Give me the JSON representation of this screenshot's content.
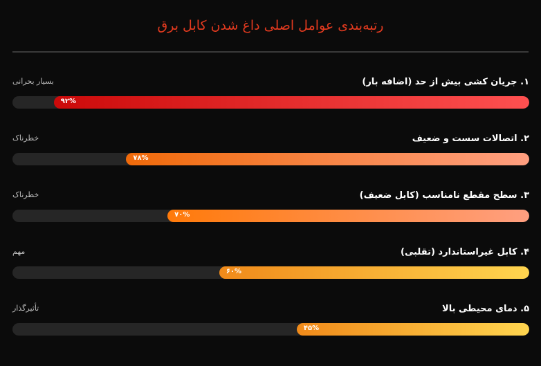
{
  "title": "رتبه‌بندی عوامل اصلی داغ شدن کابل برق",
  "factors": [
    {
      "label": "۱. جریان کشی بیش از حد (اضافه بار)",
      "severity": "بسیار بحرانی",
      "percent_text": "۹۲%",
      "value": 92,
      "color_start": "#cc0a0a",
      "color_end": "#ff5050"
    },
    {
      "label": "۲. اتصالات سست و ضعیف",
      "severity": "خطرناک",
      "percent_text": "۷۸%",
      "value": 78,
      "color_start": "#f06a0a",
      "color_end": "#ff9f80"
    },
    {
      "label": "۳. سطح مقطع نامناسب (کابل ضعیف)",
      "severity": "خطرناک",
      "percent_text": "۷۰%",
      "value": 70,
      "color_start": "#ff7a0a",
      "color_end": "#ff9f80"
    },
    {
      "label": "۴. کابل غیراستاندارد (تقلبی)",
      "severity": "مهم",
      "percent_text": "۶۰%",
      "value": 60,
      "color_start": "#f08a1a",
      "color_end": "#ffd54f"
    },
    {
      "label": "۵. دمای محیطی بالا",
      "severity": "تأثیرگذار",
      "percent_text": "۴۵%",
      "value": 45,
      "color_start": "#f08a1a",
      "color_end": "#ffd54f"
    }
  ]
}
